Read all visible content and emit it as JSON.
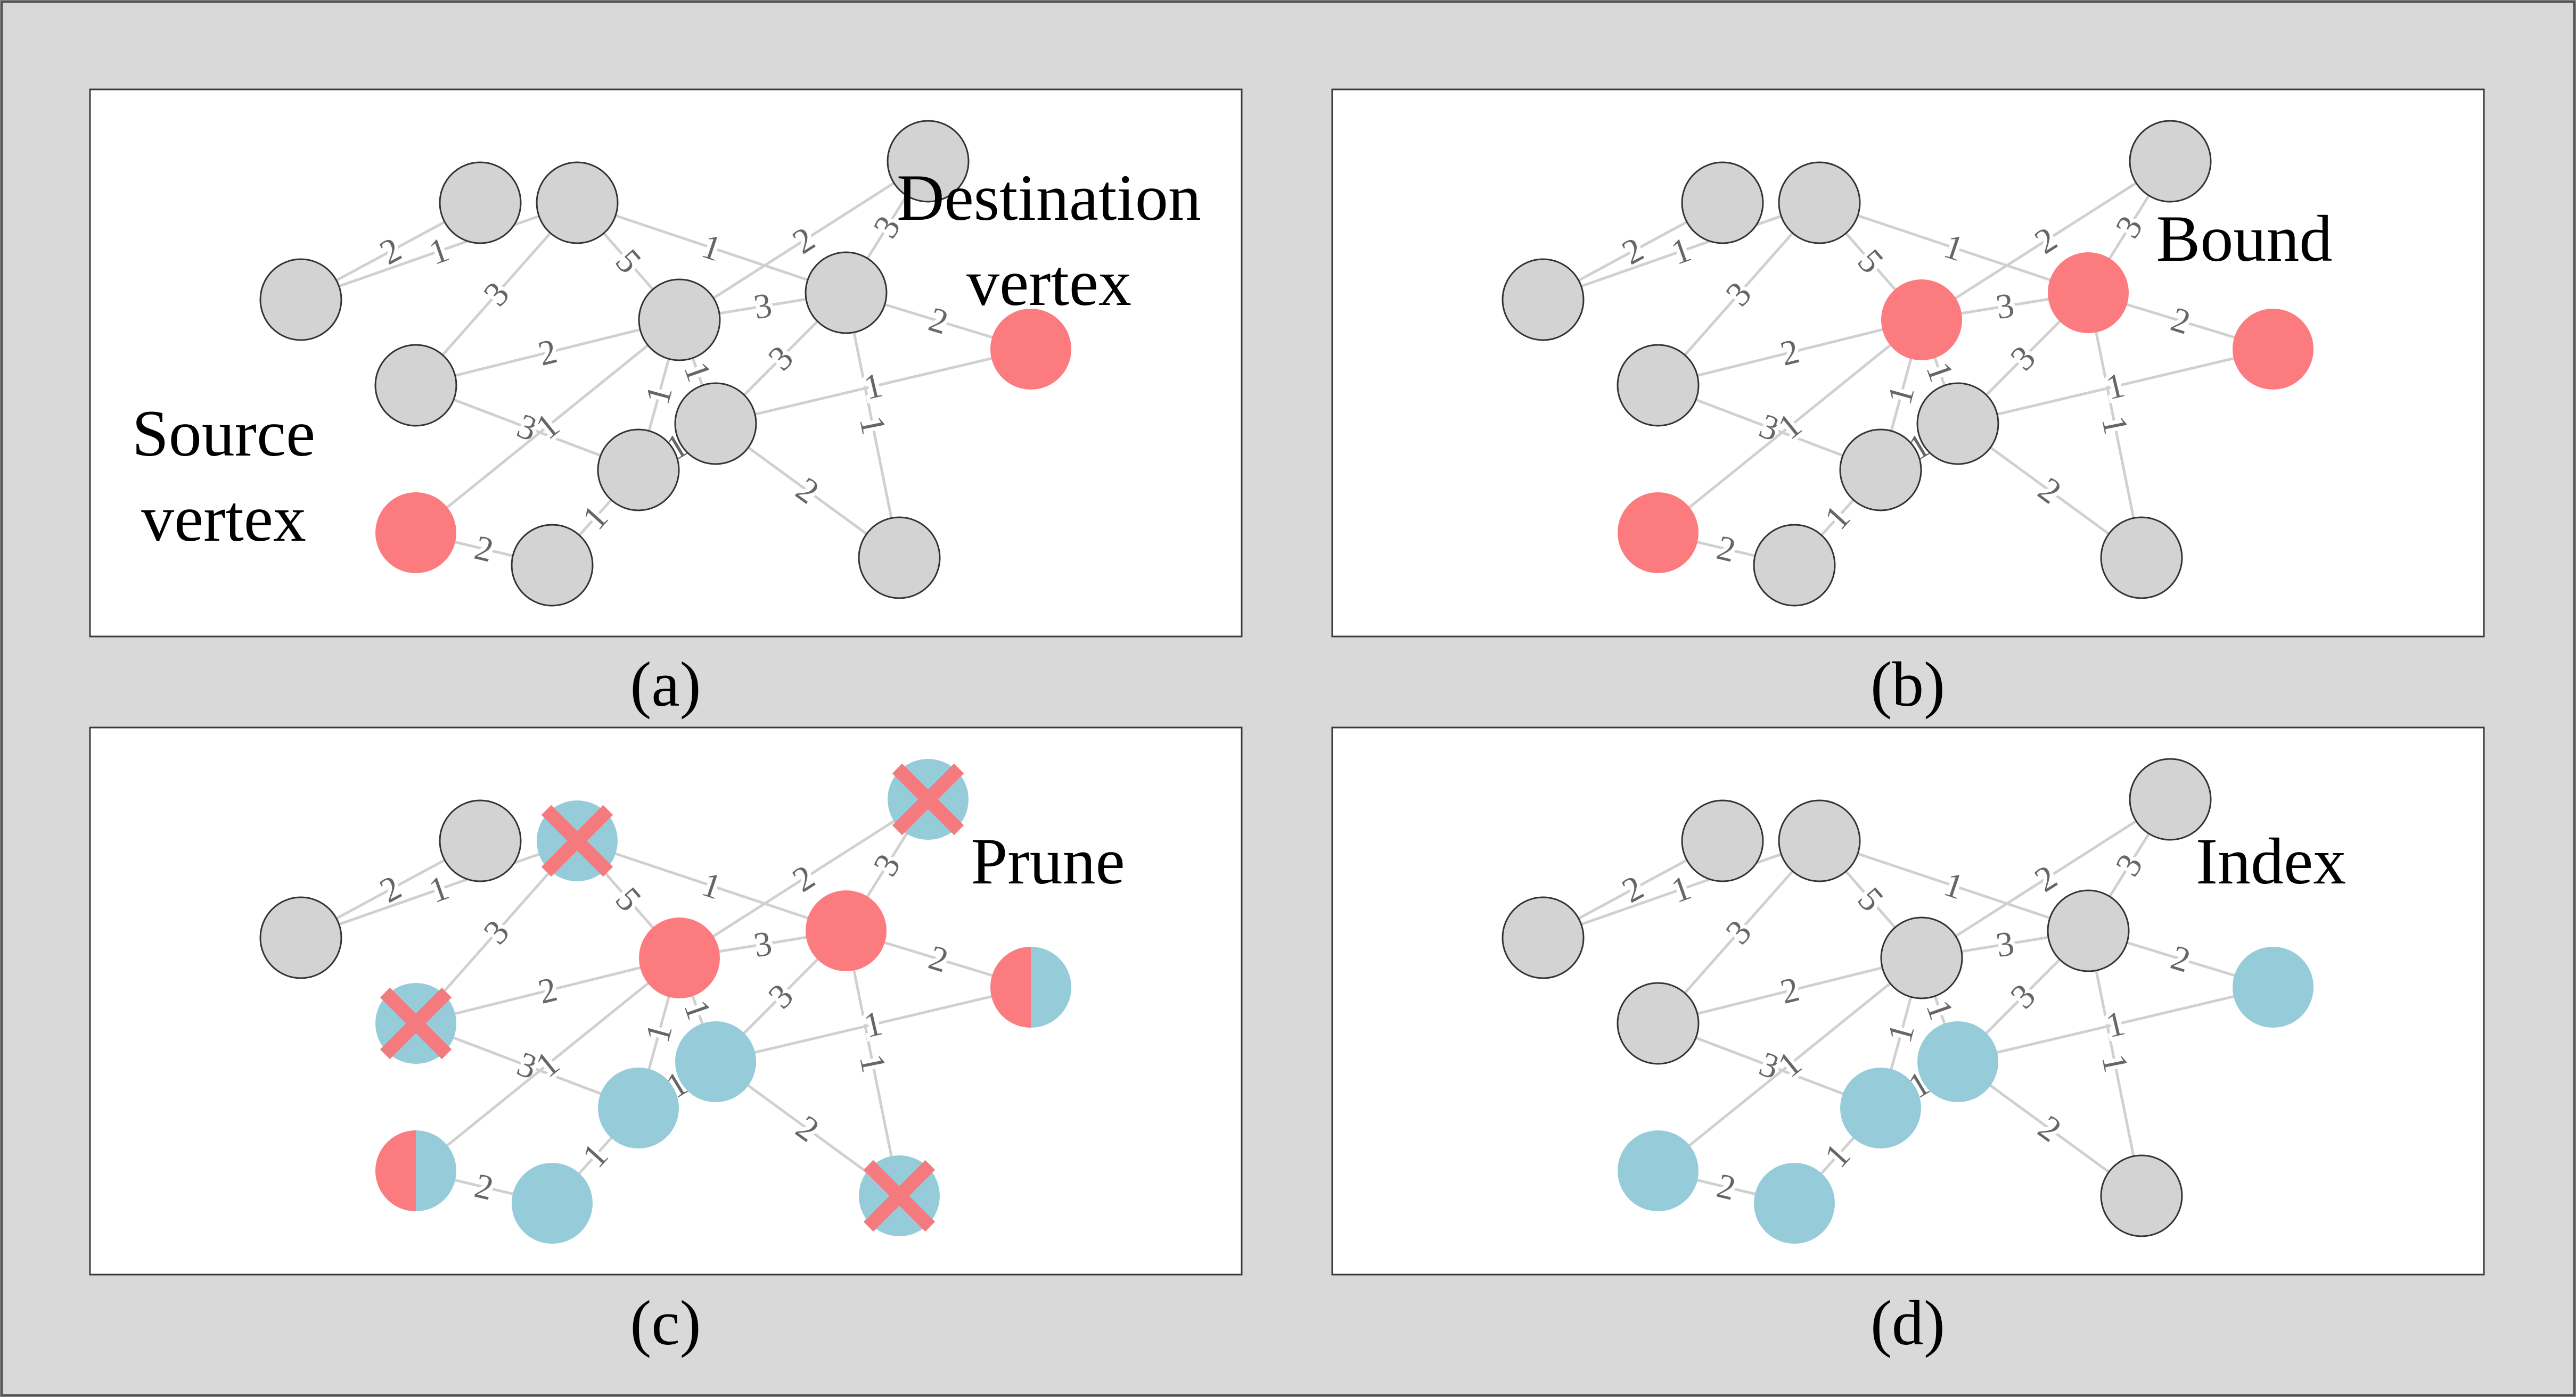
{
  "colors": {
    "background": "#d9d9d9",
    "panel": "#ffffff",
    "gray": "#d3d3d3",
    "red": "#fc7b7f",
    "blue": "#96ccda",
    "edge": "#d0d0d0",
    "edge_label": "#666666",
    "cross": "#f57a7e"
  },
  "edges": [
    {
      "a": "a",
      "b": "b",
      "w": "2"
    },
    {
      "a": "a",
      "b": "c",
      "w": "1"
    },
    {
      "a": "c",
      "b": "d",
      "w": "3"
    },
    {
      "a": "c",
      "b": "i",
      "w": "5"
    },
    {
      "a": "c",
      "b": "h",
      "w": "1"
    },
    {
      "a": "d",
      "b": "i",
      "w": "2"
    },
    {
      "a": "d",
      "b": "k",
      "w": "3"
    },
    {
      "a": "e",
      "b": "i",
      "w": "1"
    },
    {
      "a": "e",
      "b": "f",
      "w": "2"
    },
    {
      "a": "f",
      "b": "k",
      "w": "1"
    },
    {
      "a": "g",
      "b": "i",
      "w": "2"
    },
    {
      "a": "g",
      "b": "h",
      "w": "3"
    },
    {
      "a": "i",
      "b": "h",
      "w": "3"
    },
    {
      "a": "i",
      "b": "k",
      "w": "1"
    },
    {
      "a": "i",
      "b": "l",
      "w": "1"
    },
    {
      "a": "h",
      "b": "j",
      "w": "2"
    },
    {
      "a": "h",
      "b": "l",
      "w": "3"
    },
    {
      "a": "h",
      "b": "m",
      "w": "1"
    },
    {
      "a": "l",
      "b": "j",
      "w": "1"
    },
    {
      "a": "l",
      "b": "m",
      "w": "2"
    },
    {
      "a": "k",
      "b": "l",
      "w": "1"
    }
  ],
  "panels": [
    {
      "caption": "(a)",
      "annotations": [
        {
          "text": "Destination",
          "align": "middle"
        },
        {
          "text": "vertex",
          "align": "middle"
        },
        {
          "text": "Source",
          "align": "middle"
        },
        {
          "text": "vertex",
          "align": "middle"
        }
      ],
      "nodes": {
        "a": "gray",
        "b": "gray",
        "c": "gray",
        "d": "gray",
        "e": "red",
        "f": "gray",
        "g": "gray",
        "h": "gray",
        "i": "gray",
        "j": "red",
        "k": "gray",
        "l": "gray",
        "m": "gray"
      },
      "crossed": []
    },
    {
      "caption": "(b)",
      "annotations": [
        {
          "text": "Bound",
          "align": "middle"
        }
      ],
      "nodes": {
        "a": "gray",
        "b": "gray",
        "c": "gray",
        "d": "gray",
        "e": "red",
        "f": "gray",
        "g": "gray",
        "h": "red",
        "i": "red",
        "j": "red",
        "k": "gray",
        "l": "gray",
        "m": "gray"
      },
      "crossed": []
    },
    {
      "caption": "(c)",
      "annotations": [
        {
          "text": "Prune",
          "align": "middle"
        }
      ],
      "nodes": {
        "a": "gray",
        "b": "gray",
        "c": "blue",
        "d": "blue",
        "e": "half",
        "f": "blue",
        "g": "blue",
        "h": "red",
        "i": "red",
        "j": "half",
        "k": "blue",
        "l": "blue",
        "m": "blue"
      },
      "crossed": [
        "c",
        "d",
        "g",
        "m"
      ]
    },
    {
      "caption": "(d)",
      "annotations": [
        {
          "text": "Index",
          "align": "middle"
        }
      ],
      "nodes": {
        "a": "gray",
        "b": "gray",
        "c": "gray",
        "d": "gray",
        "e": "blue",
        "f": "blue",
        "g": "gray",
        "h": "gray",
        "i": "gray",
        "j": "blue",
        "k": "blue",
        "l": "blue",
        "m": "gray"
      },
      "crossed": []
    }
  ]
}
